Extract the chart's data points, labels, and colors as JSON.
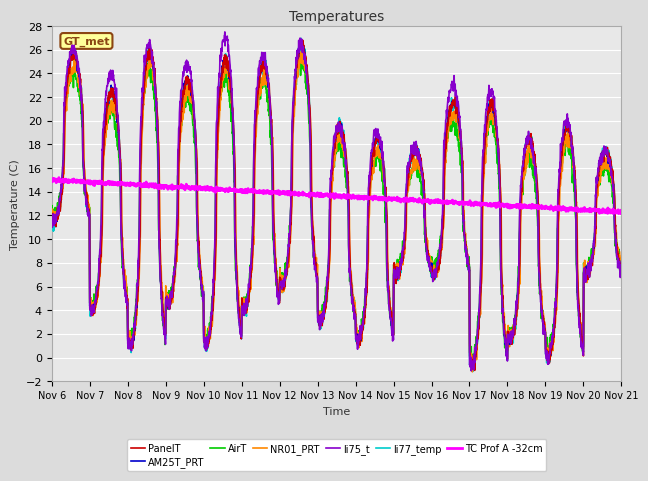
{
  "title": "Temperatures",
  "xlabel": "Time",
  "ylabel": "Temperature (C)",
  "ylim": [
    -2,
    28
  ],
  "xlim": [
    0,
    15
  ],
  "x_tick_labels": [
    "Nov 6",
    "Nov 7",
    "Nov 8",
    "Nov 9",
    "Nov 10",
    "Nov 11",
    "Nov 12",
    "Nov 13",
    "Nov 14",
    "Nov 15",
    "Nov 16",
    "Nov 17",
    "Nov 18",
    "Nov 19",
    "Nov 20",
    "Nov 21"
  ],
  "yticks": [
    -2,
    0,
    2,
    4,
    6,
    8,
    10,
    12,
    14,
    16,
    18,
    20,
    22,
    24,
    26,
    28
  ],
  "background_color": "#e8e8e8",
  "grid_color": "#ffffff",
  "fig_facecolor": "#dcdcdc",
  "annotation_text": "GT_met",
  "legend_entries": [
    {
      "label": "PanelT",
      "color": "#cc0000",
      "lw": 1.2
    },
    {
      "label": "AM25T_PRT",
      "color": "#0000cc",
      "lw": 1.2
    },
    {
      "label": "AirT",
      "color": "#00cc00",
      "lw": 1.2
    },
    {
      "label": "NR01_PRT",
      "color": "#ff8800",
      "lw": 1.2
    },
    {
      "label": "li75_t",
      "color": "#8800cc",
      "lw": 1.2
    },
    {
      "label": "li77_temp",
      "color": "#00cccc",
      "lw": 1.2
    },
    {
      "label": "TC Prof A -32cm",
      "color": "#ff00ff",
      "lw": 2.0
    }
  ],
  "tc_prof_start": 15.0,
  "tc_prof_end": 12.3,
  "day_peaks": [
    25.5,
    22.5,
    25.8,
    23.5,
    25.2,
    24.8,
    26.5,
    19.5,
    18.5,
    17.5,
    21.5,
    21.5,
    18.5,
    19.5,
    17.5,
    17.0
  ],
  "day_mins": [
    11.5,
    4.0,
    1.0,
    4.5,
    1.0,
    4.0,
    6.0,
    3.0,
    1.5,
    7.0,
    7.0,
    -0.5,
    1.5,
    0.0,
    7.0,
    7.5
  ],
  "li75_extra_peaks": [
    0.5,
    1.5,
    0.7,
    1.3,
    2.0,
    0.8,
    0.0,
    0.0,
    0.5,
    0.3,
    1.5,
    1.0,
    0.0,
    0.5,
    0.0,
    0.0
  ]
}
